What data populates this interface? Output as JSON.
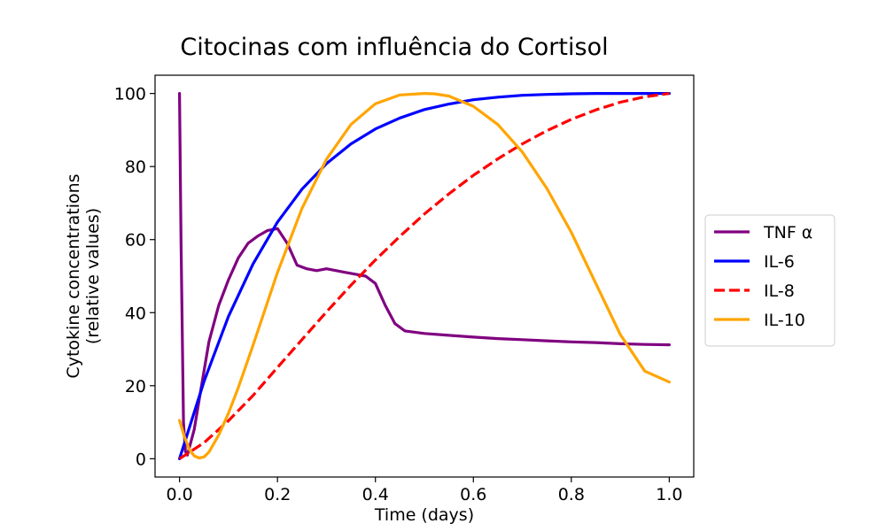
{
  "chart_data": {
    "type": "line",
    "title": "Citocinas com influência do Cortisol",
    "xlabel": "Time (days)",
    "ylabel": "Cytokine concentrations\n(relative values)",
    "xlim": [
      -0.05,
      1.05
    ],
    "ylim": [
      -5,
      105
    ],
    "xticks": [
      0.0,
      0.2,
      0.4,
      0.6,
      0.8,
      1.0
    ],
    "xtick_labels": [
      "0.0",
      "0.2",
      "0.4",
      "0.6",
      "0.8",
      "1.0"
    ],
    "yticks": [
      0,
      20,
      40,
      60,
      80,
      100
    ],
    "ytick_labels": [
      "0",
      "20",
      "40",
      "60",
      "80",
      "100"
    ],
    "grid": false,
    "legend": "outside-right",
    "series": [
      {
        "name": "TNF α",
        "color": "#800080",
        "style": "solid",
        "x": [
          0,
          0.003,
          0.008,
          0.012,
          0.016,
          0.02,
          0.03,
          0.04,
          0.06,
          0.08,
          0.1,
          0.12,
          0.14,
          0.16,
          0.18,
          0.2,
          0.21,
          0.22,
          0.24,
          0.26,
          0.28,
          0.3,
          0.32,
          0.34,
          0.36,
          0.38,
          0.4,
          0.42,
          0.44,
          0.46,
          0.5,
          0.55,
          0.6,
          0.65,
          0.7,
          0.75,
          0.8,
          0.85,
          0.9,
          0.95,
          1.0
        ],
        "y": [
          100,
          60,
          10,
          2,
          1,
          3,
          8,
          16,
          32,
          42,
          49,
          55,
          59,
          61,
          62.5,
          63,
          61,
          59,
          53,
          52,
          51.5,
          52,
          51.5,
          51,
          50.5,
          50,
          48,
          42,
          37,
          35,
          34.3,
          33.8,
          33.3,
          32.9,
          32.6,
          32.3,
          32.0,
          31.8,
          31.5,
          31.3,
          31.2
        ]
      },
      {
        "name": "IL-6",
        "color": "#0000ff",
        "style": "solid",
        "x": [
          0,
          0.05,
          0.1,
          0.15,
          0.2,
          0.25,
          0.3,
          0.35,
          0.4,
          0.45,
          0.5,
          0.55,
          0.6,
          0.65,
          0.7,
          0.75,
          0.8,
          0.85,
          0.9,
          0.95,
          1.0
        ],
        "y": [
          0,
          21.2,
          39,
          53.3,
          64.8,
          73.8,
          80.8,
          86.2,
          90.3,
          93.3,
          95.6,
          97.1,
          98.3,
          99.0,
          99.5,
          99.75,
          99.9,
          100,
          100,
          100,
          100
        ]
      },
      {
        "name": "IL-8",
        "color": "#ff0000",
        "style": "dashed",
        "x": [
          0,
          0.05,
          0.1,
          0.15,
          0.2,
          0.25,
          0.3,
          0.35,
          0.4,
          0.45,
          0.5,
          0.55,
          0.6,
          0.65,
          0.7,
          0.75,
          0.8,
          0.85,
          0.9,
          0.95,
          1.0
        ],
        "y": [
          0,
          4.4,
          10.4,
          17.3,
          25.0,
          32.6,
          40.2,
          47.5,
          54.4,
          60.9,
          67.0,
          72.5,
          77.6,
          82.1,
          86.2,
          89.8,
          92.9,
          95.5,
          97.6,
          99.1,
          100
        ]
      },
      {
        "name": "IL-10",
        "color": "#ffa500",
        "style": "solid",
        "x": [
          0,
          0.01,
          0.02,
          0.03,
          0.04,
          0.05,
          0.06,
          0.08,
          0.1,
          0.12,
          0.15,
          0.2,
          0.25,
          0.3,
          0.35,
          0.4,
          0.45,
          0.5,
          0.52,
          0.55,
          0.6,
          0.65,
          0.7,
          0.75,
          0.8,
          0.85,
          0.9,
          0.95,
          1.0
        ],
        "y": [
          10.5,
          6,
          2.5,
          0.8,
          0.2,
          0.5,
          1.8,
          6.5,
          12.5,
          19.5,
          31,
          51,
          68.5,
          82,
          91.5,
          97.2,
          99.6,
          100,
          99.9,
          99.3,
          96.5,
          91.5,
          84,
          74,
          62,
          48,
          34,
          24,
          21
        ]
      }
    ]
  }
}
